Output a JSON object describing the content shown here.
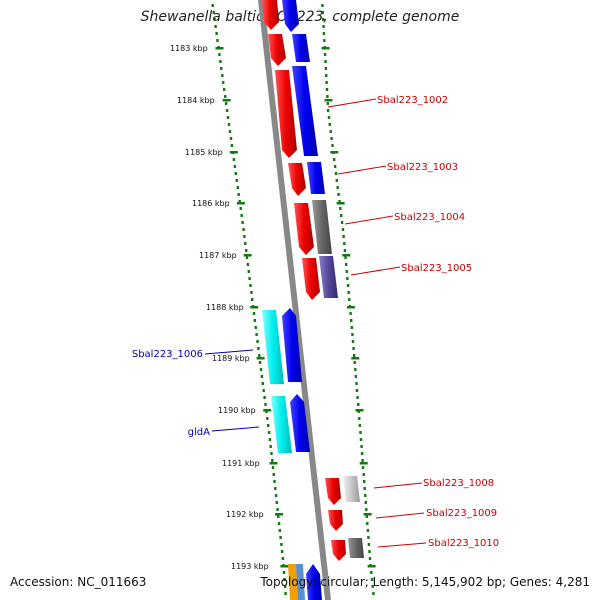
{
  "title": "Shewanella baltica OS223, complete genome",
  "accession": "Accession: NC_011663",
  "topology": "Topology: circular; Length: 5,145,902 bp; Genes: 4,281",
  "colors": {
    "backbone": "#888888",
    "tick": "#137a13",
    "forward_label": "#cc0000",
    "reverse_label": "#0000aa"
  },
  "ticks": [
    {
      "kbp": 1183,
      "label": "1183 kbp"
    },
    {
      "kbp": 1184,
      "label": "1184 kbp"
    },
    {
      "kbp": 1185,
      "label": "1185 kbp"
    },
    {
      "kbp": 1186,
      "label": "1186 kbp"
    },
    {
      "kbp": 1187,
      "label": "1187 kbp"
    },
    {
      "kbp": 1188,
      "label": "1188 kbp"
    },
    {
      "kbp": 1189,
      "label": "1189 kbp"
    },
    {
      "kbp": 1190,
      "label": "1190 kbp"
    },
    {
      "kbp": 1191,
      "label": "1191 kbp"
    },
    {
      "kbp": 1192,
      "label": "1192 kbp"
    },
    {
      "kbp": 1193,
      "label": "1193 kbp"
    }
  ],
  "gene_labels": [
    {
      "label": "Sbal223_1002",
      "side": "right",
      "color": "#cc0000"
    },
    {
      "label": "Sbal223_1003",
      "side": "right",
      "color": "#cc0000"
    },
    {
      "label": "Sbal223_1004",
      "side": "right",
      "color": "#cc0000"
    },
    {
      "label": "Sbal223_1005",
      "side": "right",
      "color": "#cc0000"
    },
    {
      "label": "Sbal223_1006",
      "side": "left",
      "color": "#0000aa"
    },
    {
      "label": "gldA",
      "side": "left",
      "color": "#0000aa"
    },
    {
      "label": "Sbal223_1008",
      "side": "right",
      "color": "#cc0000"
    },
    {
      "label": "Sbal223_1009",
      "side": "right",
      "color": "#cc0000"
    },
    {
      "label": "Sbal223_1010",
      "side": "right",
      "color": "#cc0000"
    }
  ]
}
